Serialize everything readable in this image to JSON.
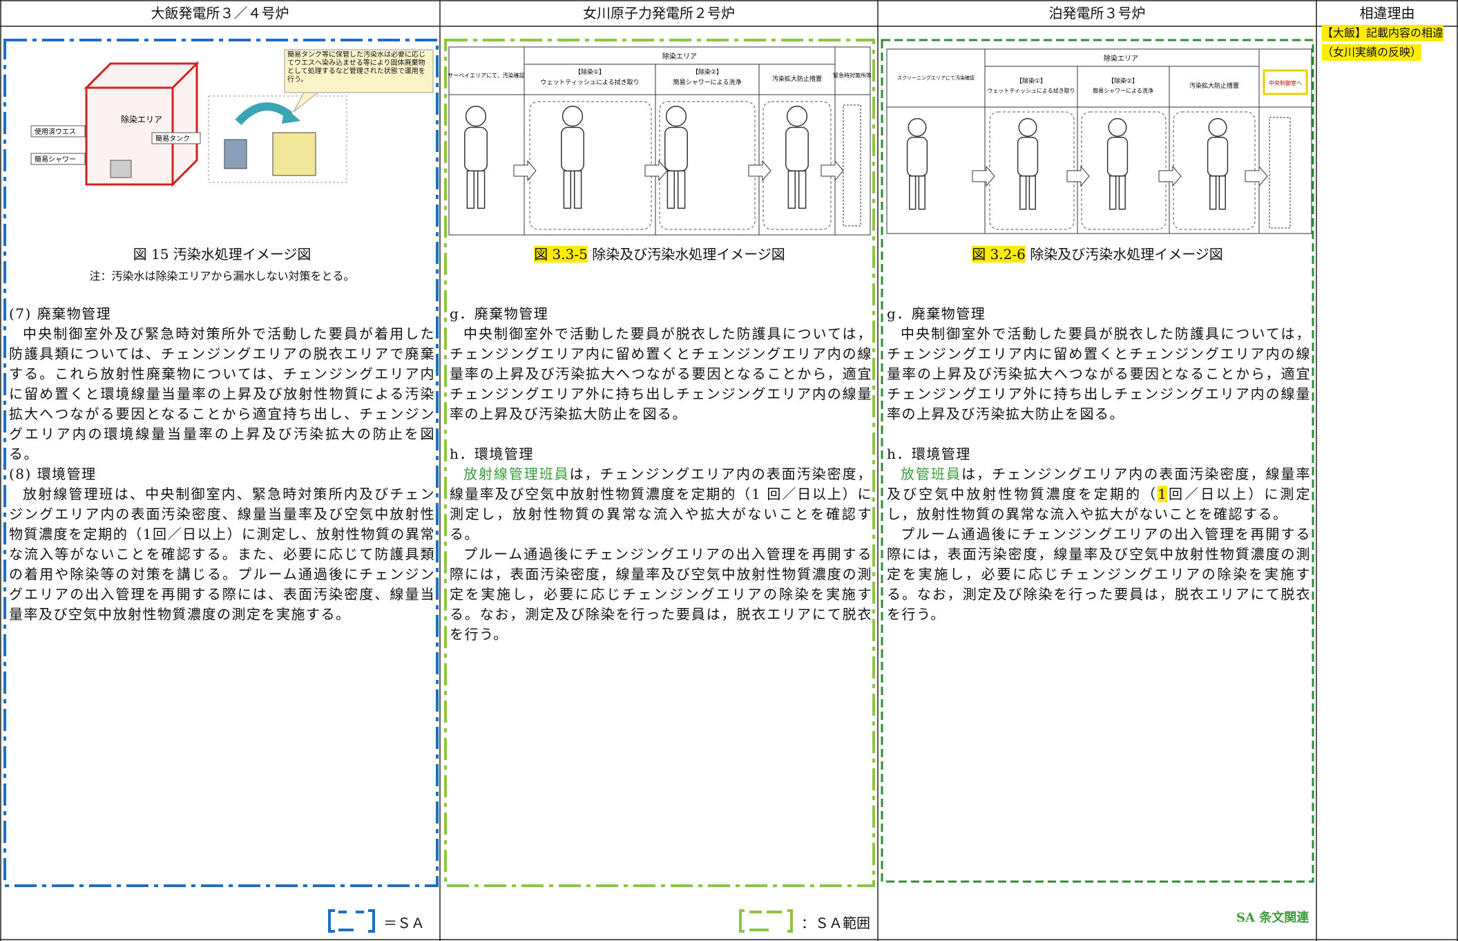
{
  "header": [
    "大飯発電所３／４号炉",
    "女川原子力発電所２号炉",
    "泊発電所３号炉",
    "相違理由"
  ],
  "columns": [
    {
      "figure": {
        "callout": "簡易タンク等に保管した汚染水は必要に応じてウエスへ染み込ませる等により固体廃棄物として処理するなど管理された状態で運用を行う。",
        "labels": [
          "除染エリア",
          "簡易タンク",
          "使用済ウエス",
          "簡易シャワー"
        ]
      },
      "caption": "図 15 汚染水処理イメージ図",
      "note": "注：汚染水は除染エリアから漏水しない対策をとる。",
      "sections": [
        {
          "heading": "(7) 廃棄物管理",
          "paragraphs": [
            "中央制御室外及び緊急時対策所外で活動した要員が着用した防護具類については、チェンジングエリアの脱衣エリアで廃棄する。これら放射性廃棄物については、チェンジングエリア内に留め置くと環境線量当量率の上昇及び放射性物質による汚染拡大へつながる要因となることから適宜持ち出し、チェンジングエリア内の環境線量当量率の上昇及び汚染拡大の防止を図る。"
          ]
        },
        {
          "heading": "(8) 環境管理",
          "paragraphs": [
            "放射線管理班は、中央制御室内、緊急時対策所内及びチェンジングエリア内の表面汚染密度、線量当量率及び空気中放射性物質濃度を定期的（1回／日以上）に測定し、放射性物質の異常な流入等がないことを確認する。また、必要に応じて防護具類の着用や除染等の対策を講じる。プルーム通過後にチェンジングエリアの出入管理を再開する際には、表面汚染密度、線量当量率及び空気中放射性物質濃度の測定を実施する。"
          ]
        }
      ],
      "legend": "＝ＳＡ"
    },
    {
      "figure": {
        "labels": [
          "除染エリア",
          "サーベイエリアにて、汚染確認",
          "【除染①】",
          "ウェットティッシュによる拭き取り",
          "【除染②】",
          "簡易シャワーによる洗浄",
          "汚染拡大防止措置",
          "緊急時対策所等"
        ]
      },
      "caption_number": "図 3.3-5",
      "caption": "除染及び汚染水処理イメージ図",
      "sections": [
        {
          "heading": "g．廃棄物管理",
          "paragraphs": [
            "中央制御室外で活動した要員が脱衣した防護具については，チェンジングエリア内に留め置くとチェンジングエリア内の線量率の上昇及び汚染拡大へつながる要因となることから，適宜チェンジングエリア外に持ち出しチェンジングエリア内の線量率の上昇及び汚染拡大防止を図る。"
          ]
        },
        {
          "heading": "h．環境管理",
          "paragraphs": [
            [
              "放射線管理班員",
              "は，チェンジングエリア内の表面汚染密度，線量率及び空気中放射性物質濃度を定期的（1 回／日以上）に測定し，放射性物質の異常な流入や拡大がないことを確認する。"
            ],
            "プルーム通過後にチェンジングエリアの出入管理を再開する際には，表面汚染密度，線量率及び空気中放射性物質濃度の測定を実施し，必要に応じチェンジングエリアの除染を実施する。なお，測定及び除染を行った要員は，脱衣エリアにて脱衣を行う。"
          ]
        }
      ],
      "legend": "：ＳＡ範囲"
    },
    {
      "figure": {
        "labels": [
          "スクリーニングエリアにて汚染確認",
          "除染エリア",
          "【除染①】",
          "ウェットティッシュによる拭き取り",
          "【除染②】",
          "簡易シャワーによる洗浄",
          "汚染拡大防止措置",
          "中央制御室へ"
        ]
      },
      "caption_number": "図 3.2-6",
      "caption": "除染及び汚染水処理イメージ図",
      "sections": [
        {
          "heading": "g．廃棄物管理",
          "paragraphs": [
            "中央制御室外で活動した要員が脱衣した防護具については，チェンジングエリア内に留め置くとチェンジングエリア内の線量率の上昇及び汚染拡大へつながる要因となることから，適宜チェンジングエリア外に持ち出しチェンジングエリア内の線量率の上昇及び汚染拡大防止を図る。"
          ]
        },
        {
          "heading": "h．環境管理",
          "paragraphs": [
            [
              "放管班員",
              "は，チェンジングエリア内の表面汚染密度，線量率及び空気中放射性物質濃度を定期的（",
              "1",
              "回／日以上）に測定し，放射性物質の異常な流入や拡大がないことを確認する。"
            ],
            "プルーム通過後にチェンジングエリアの出入管理を再開する際には，表面汚染密度，線量率及び空気中放射性物質濃度の測定を実施し，必要に応じチェンジングエリアの除染を実施する。なお，測定及び除染を行った要員は，脱衣エリアにて脱衣を行う。"
          ]
        }
      ],
      "legend": "SA 条文関連"
    }
  ],
  "reason": [
    "【大飯】記載内容の相違",
    "（女川実績の反映）"
  ]
}
